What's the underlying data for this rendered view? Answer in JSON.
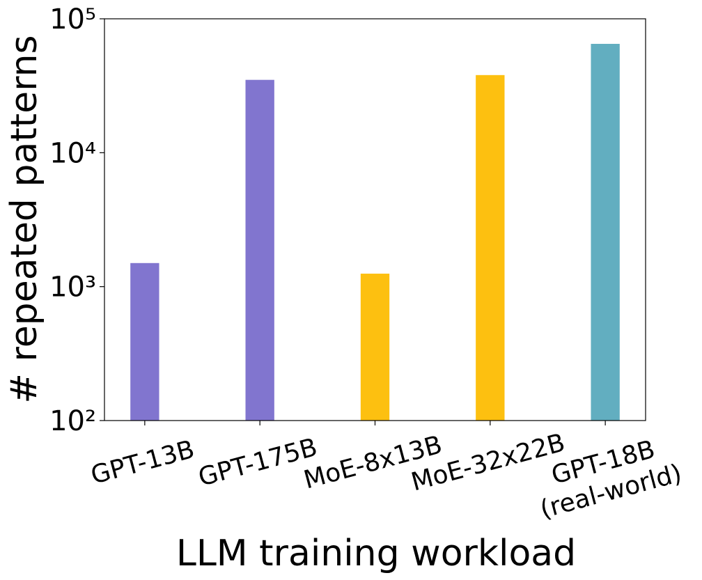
{
  "chart_data": {
    "type": "bar",
    "log_scale": true,
    "categories": [
      "GPT-13B",
      "GPT-175B",
      "MoE-8x13B",
      "MoE-32x22B",
      "GPT-18B\n(real-world)"
    ],
    "values": [
      1500,
      35000,
      1250,
      38000,
      65000
    ],
    "colors": [
      "#8175cf",
      "#8175cf",
      "#fdc010",
      "#fdc010",
      "#62aec0"
    ],
    "x_label": "LLM training workload",
    "y_label": "# repeated patterns",
    "ylim": [
      100,
      100000
    ],
    "yticks": [
      {
        "value": 100,
        "label": "10²"
      },
      {
        "value": 1000,
        "label": "10³"
      },
      {
        "value": 10000,
        "label": "10⁴"
      },
      {
        "value": 100000,
        "label": "10⁵"
      }
    ]
  }
}
